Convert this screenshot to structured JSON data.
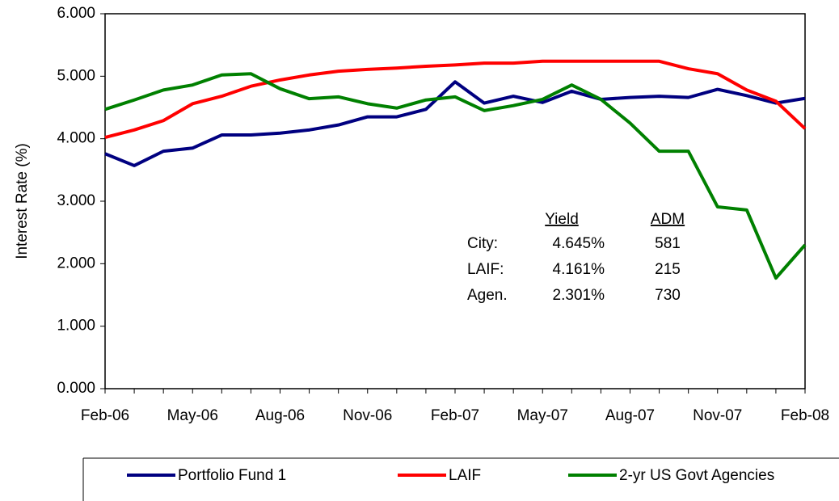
{
  "chart_data": {
    "type": "line",
    "y_label": "Interest Rate (%)",
    "categories": [
      "Feb-06",
      null,
      null,
      "May-06",
      null,
      null,
      "Aug-06",
      null,
      null,
      "Nov-06",
      null,
      null,
      "Feb-07",
      null,
      null,
      "May-07",
      null,
      null,
      "Aug-07",
      null,
      null,
      "Nov-07",
      null,
      null,
      "Feb-08"
    ],
    "ylim": [
      0,
      6
    ],
    "yticks": [
      {
        "value": 0,
        "label": "0.000"
      },
      {
        "value": 1,
        "label": "1.000"
      },
      {
        "value": 2,
        "label": "2.000"
      },
      {
        "value": 3,
        "label": "3.000"
      },
      {
        "value": 4,
        "label": "4.000"
      },
      {
        "value": 5,
        "label": "5.000"
      },
      {
        "value": 6,
        "label": "6.000"
      }
    ],
    "series": [
      {
        "name": "Portfolio Fund 1",
        "color": "#000080",
        "values": [
          3.76,
          3.57,
          3.8,
          3.85,
          4.06,
          4.06,
          4.09,
          4.14,
          4.22,
          4.35,
          4.35,
          4.47,
          4.91,
          4.57,
          4.68,
          4.58,
          4.76,
          4.63,
          4.66,
          4.68,
          4.66,
          4.79,
          4.69,
          4.57,
          4.645
        ]
      },
      {
        "name": "LAIF",
        "color": "#ff0000",
        "values": [
          4.02,
          4.14,
          4.29,
          4.56,
          4.68,
          4.84,
          4.94,
          5.02,
          5.08,
          5.11,
          5.13,
          5.16,
          5.18,
          5.21,
          5.21,
          5.24,
          5.24,
          5.24,
          5.24,
          5.24,
          5.12,
          5.04,
          4.78,
          4.6,
          4.161
        ]
      },
      {
        "name": "2-yr US Govt Agencies",
        "color": "#008000",
        "values": [
          4.47,
          4.62,
          4.78,
          4.86,
          5.02,
          5.04,
          4.8,
          4.64,
          4.67,
          4.56,
          4.49,
          4.62,
          4.67,
          4.45,
          4.53,
          4.63,
          4.86,
          4.63,
          4.25,
          3.8,
          3.8,
          2.91,
          2.86,
          1.77,
          2.301
        ]
      }
    ],
    "annotation_table": {
      "headers": [
        "Yield",
        "ADM"
      ],
      "rows": [
        [
          "City:",
          "4.645%",
          "581"
        ],
        [
          "LAIF:",
          "4.161%",
          "215"
        ],
        [
          "Agen.",
          "2.301%",
          "730"
        ]
      ]
    }
  }
}
